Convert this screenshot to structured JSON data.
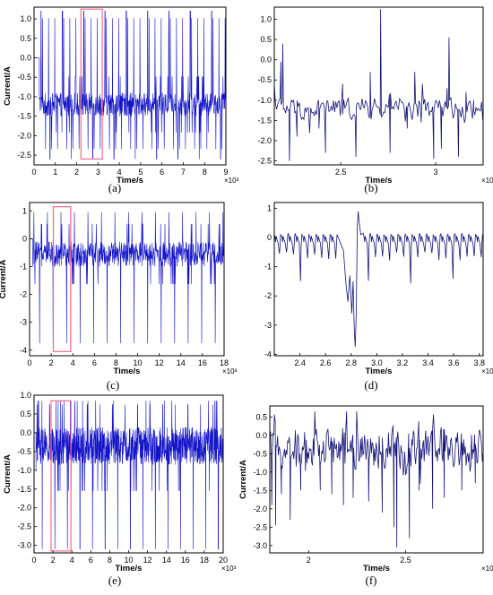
{
  "chart_data": [
    {
      "panel": "(a)",
      "type": "line",
      "xlabel": "Time/s",
      "ylabel": "Current/A",
      "x_unit_label": "×10³",
      "xlim": [
        0,
        9000
      ],
      "ylim": [
        -2.75,
        1.3
      ],
      "x_ticks": [
        0,
        1,
        2,
        3,
        4,
        5,
        6,
        7,
        8,
        9
      ],
      "y_ticks": [
        1.0,
        0.5,
        0.0,
        -0.5,
        -1.0,
        -1.5,
        -2.0,
        -2.5
      ],
      "y_tick_labels": [
        "1.0",
        "0.5",
        "0.0",
        "-0.5",
        "-1.0",
        "-1.5",
        "-2.0",
        "-2.5"
      ],
      "highlight_box": {
        "x": [
          2200,
          3200
        ],
        "y": [
          -2.6,
          1.25
        ],
        "color": "#ff6a8a"
      },
      "pattern": {
        "type": "dense",
        "period": 1000,
        "start": 250,
        "duration": 9000,
        "sample_step": 12,
        "base": -1.2,
        "spread": 0.3,
        "min": -2.6,
        "max": 1.2,
        "spike_high": 1.2,
        "spike_low": -2.6,
        "spikes_per_cycle": 7
      },
      "series_color": "#1515c8"
    },
    {
      "panel": "(b)",
      "type": "line",
      "xlabel": "Time/s",
      "ylabel": "",
      "x_unit_label": "×10³",
      "xlim": [
        2150,
        3250
      ],
      "ylim": [
        -2.6,
        1.3
      ],
      "x_ticks": [
        2.5,
        3
      ],
      "y_ticks": [
        1.0,
        0.5,
        0.0,
        -0.5,
        -1.0,
        -1.5,
        -2.0,
        -2.5
      ],
      "y_tick_labels": [
        "1.0",
        "0.5",
        "0.0",
        "-0.5",
        "-1.0",
        "-1.5",
        "-2.0",
        "-2.5"
      ],
      "pattern": {
        "type": "zoom",
        "step": 6,
        "base": -1.2,
        "spread": 0.25,
        "min": -2.55,
        "max": 1.25,
        "spikes": [
          [
            2185,
            -0.05
          ],
          [
            2195,
            0.4
          ],
          [
            2230,
            -2.5
          ],
          [
            2270,
            -1.9
          ],
          [
            2385,
            -1.7
          ],
          [
            2420,
            -2.3
          ],
          [
            2510,
            -0.6
          ],
          [
            2580,
            -2.4
          ],
          [
            2655,
            -0.3
          ],
          [
            2710,
            1.25
          ],
          [
            2760,
            -2.3
          ],
          [
            2850,
            -1.7
          ],
          [
            2890,
            -0.3
          ],
          [
            2990,
            -2.45
          ],
          [
            3030,
            -2.2
          ],
          [
            3060,
            -0.7
          ],
          [
            3070,
            0.55
          ],
          [
            3120,
            -2.4
          ],
          [
            3160,
            -0.8
          ],
          [
            3200,
            -1.0
          ]
        ]
      },
      "series_color": "#141478"
    },
    {
      "panel": "(c)",
      "type": "line",
      "xlabel": "Time/s",
      "ylabel": "Current/A",
      "x_unit_label": "×10³",
      "xlim": [
        0,
        18000
      ],
      "ylim": [
        -4.2,
        1.3
      ],
      "x_ticks": [
        0,
        2,
        4,
        6,
        8,
        10,
        12,
        14,
        16,
        18
      ],
      "y_ticks": [
        1,
        0,
        -1,
        -2,
        -3,
        -4
      ],
      "y_tick_labels": [
        "1",
        "0",
        "-1",
        "-2",
        "-3",
        "-4"
      ],
      "highlight_box": {
        "x": [
          2200,
          3800
        ],
        "y": [
          -4.05,
          1.15
        ],
        "color": "#ff6a8a"
      },
      "pattern": {
        "type": "dense",
        "period": 1250,
        "start": 300,
        "duration": 18000,
        "sample_step": 25,
        "base": -0.55,
        "spread": 0.45,
        "min": -1.4,
        "max": 0.15,
        "spike_high": 0.95,
        "spike_low": -3.75,
        "spikes_per_cycle": 1
      },
      "series_color": "#1515c8"
    },
    {
      "panel": "(d)",
      "type": "line",
      "xlabel": "Time/s",
      "ylabel": "",
      "x_unit_label": "×10³",
      "xlim": [
        2200,
        3830
      ],
      "ylim": [
        -4.05,
        1.2
      ],
      "x_ticks": [
        2.4,
        2.6,
        2.8,
        3.0,
        3.2,
        3.4,
        3.6,
        3.8
      ],
      "x_tick_labels": [
        "2.4",
        "2.6",
        "2.8",
        "3.0",
        "3.2",
        "3.4",
        "3.6",
        "3.8"
      ],
      "y_ticks": [
        1,
        0,
        -1,
        -2,
        -3,
        -4
      ],
      "y_tick_labels": [
        "1",
        "0",
        "-1",
        "-2",
        "-3",
        "-4"
      ],
      "pattern": {
        "type": "sawtooth",
        "teeth_start": 2200,
        "teeth_period": 55,
        "high": 0.1,
        "low": -0.65,
        "dip_low": -1.7,
        "dip_every": 6,
        "event": [
          [
            2740,
            -0.45
          ],
          [
            2750,
            -1.05
          ],
          [
            2760,
            -1.6
          ],
          [
            2775,
            -2.2
          ],
          [
            2790,
            -1.3
          ],
          [
            2805,
            -2.6
          ],
          [
            2815,
            -1.5
          ],
          [
            2825,
            -3.2
          ],
          [
            2832,
            -3.75
          ],
          [
            2840,
            -2.5
          ],
          [
            2848,
            0.35
          ],
          [
            2855,
            0.9
          ],
          [
            2862,
            0.55
          ],
          [
            2875,
            0.1
          ]
        ]
      },
      "series_color": "#141478"
    },
    {
      "panel": "(e)",
      "type": "line",
      "xlabel": "Time/s",
      "ylabel": "Current/A",
      "x_unit_label": "×10³",
      "xlim": [
        0,
        20000
      ],
      "ylim": [
        -3.2,
        1.0
      ],
      "x_ticks": [
        0,
        2,
        4,
        6,
        8,
        10,
        12,
        14,
        16,
        18,
        20
      ],
      "y_ticks": [
        1.0,
        0.5,
        0.0,
        -0.5,
        -1.0,
        -1.5,
        -2.0,
        -2.5,
        -3.0
      ],
      "y_tick_labels": [
        "1.0",
        "0.5",
        "0.0",
        "-0.5",
        "-1.0",
        "-1.5",
        "-2.0",
        "-2.5",
        "-3.0"
      ],
      "highlight_box": {
        "x": [
          1800,
          3900
        ],
        "y": [
          -3.15,
          0.85
        ],
        "color": "#ff6a8a"
      },
      "pattern": {
        "type": "dense",
        "period": 1330,
        "start": 200,
        "duration": 20000,
        "sample_step": 22,
        "base": -0.35,
        "spread": 0.5,
        "min": -1.55,
        "max": 0.75,
        "spike_high": 0.75,
        "spike_low": -3.1,
        "spikes_per_cycle": 2
      },
      "series_color": "#1515c8"
    },
    {
      "panel": "(f)",
      "type": "line",
      "xlabel": "Time/s",
      "ylabel": "Current/A",
      "x_unit_label": "×10³",
      "xlim": [
        1800,
        2900
      ],
      "ylim": [
        -3.2,
        0.8
      ],
      "x_ticks": [
        2,
        2.5
      ],
      "y_ticks": [
        0.5,
        0.0,
        -0.5,
        -1.0,
        -1.5,
        -2.0,
        -2.5,
        -3.0
      ],
      "y_tick_labels": [
        "0.5",
        "0.0",
        "-0.5",
        "-1.0",
        "-1.5",
        "-2.0",
        "-2.5",
        "-3.0"
      ],
      "pattern": {
        "type": "zoom",
        "step": 4,
        "base": -0.35,
        "spread": 0.5,
        "min": -3.05,
        "max": 0.65,
        "spikes": [
          [
            1810,
            -1.9
          ],
          [
            1830,
            -2.45
          ],
          [
            1860,
            -1.6
          ],
          [
            1905,
            -2.3
          ],
          [
            1960,
            -1.5
          ],
          [
            2060,
            -1.5
          ],
          [
            2120,
            -1.6
          ],
          [
            2180,
            -1.9
          ],
          [
            2230,
            -1.7
          ],
          [
            2310,
            -1.8
          ],
          [
            2380,
            -2.1
          ],
          [
            2440,
            -2.5
          ],
          [
            2455,
            -3.05
          ],
          [
            2520,
            -2.8
          ],
          [
            2570,
            -1.5
          ],
          [
            2640,
            -2.0
          ],
          [
            2700,
            -1.7
          ],
          [
            2790,
            -1.5
          ],
          [
            2860,
            -1.3
          ]
        ]
      },
      "series_color": "#141478"
    }
  ]
}
